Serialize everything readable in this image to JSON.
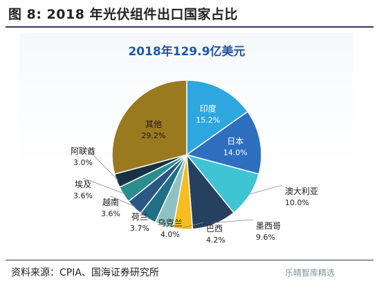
{
  "figure": {
    "title": "图 8:  2018 年光伏组件出口国家占比",
    "source": "资料来源：CPIA、国海证券研究所",
    "watermark": "乐晴智库精选"
  },
  "chart_data": {
    "type": "pie",
    "title": "2018年129.9亿美元",
    "slices": [
      {
        "label": "印度",
        "value": 15.2,
        "value_text": "15.2%",
        "color": "#2ea7e0"
      },
      {
        "label": "日本",
        "value": 14.0,
        "value_text": "14.0%",
        "color": "#2e6fbf"
      },
      {
        "label": "澳大利亚",
        "value": 10.0,
        "value_text": "10.0%",
        "color": "#3fc4d4"
      },
      {
        "label": "墨西哥",
        "value": 9.6,
        "value_text": "9.6%",
        "color": "#25415f"
      },
      {
        "label": "巴西",
        "value": 4.2,
        "value_text": "4.2%",
        "color": "#f5bd1f"
      },
      {
        "label": "乌克兰",
        "value": 4.0,
        "value_text": "4.0%",
        "color": "#8fc1c2"
      },
      {
        "label": "荷兰",
        "value": 3.7,
        "value_text": "3.7%",
        "color": "#1f6f86"
      },
      {
        "label": "越南",
        "value": 3.6,
        "value_text": "3.6%",
        "color": "#2b5785"
      },
      {
        "label": "埃及",
        "value": 3.6,
        "value_text": "3.6%",
        "color": "#2a8f8c"
      },
      {
        "label": "阿联酋",
        "value": 3.0,
        "value_text": "3.0%",
        "color": "#163345"
      },
      {
        "label": "其他",
        "value": 29.2,
        "value_text": "29.2%",
        "color": "#9a7a1f"
      }
    ]
  }
}
